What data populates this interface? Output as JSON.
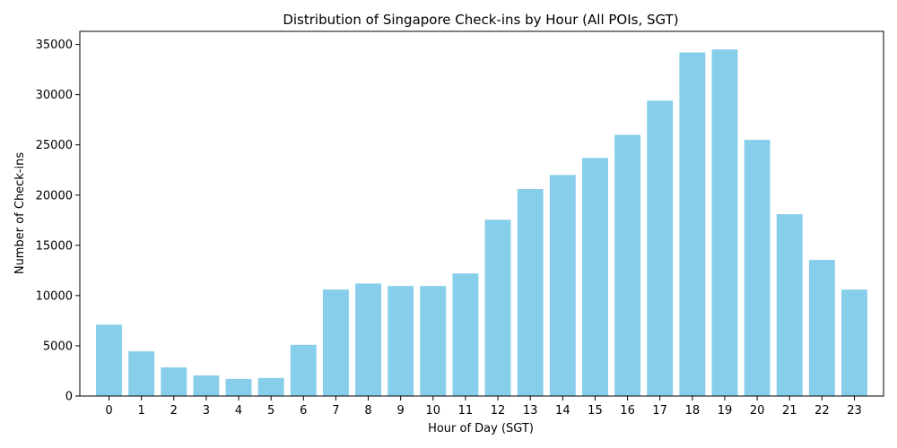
{
  "chart_data": {
    "type": "bar",
    "title": "Distribution of Singapore Check-ins by Hour (All POIs, SGT)",
    "xlabel": "Hour of Day (SGT)",
    "ylabel": "Number of Check-ins",
    "categories": [
      "0",
      "1",
      "2",
      "3",
      "4",
      "5",
      "6",
      "7",
      "8",
      "9",
      "10",
      "11",
      "12",
      "13",
      "14",
      "15",
      "16",
      "17",
      "18",
      "19",
      "20",
      "21",
      "22",
      "23"
    ],
    "values": [
      7100,
      4450,
      2850,
      2050,
      1700,
      1800,
      5100,
      10600,
      11200,
      10950,
      10950,
      12200,
      17550,
      20600,
      22000,
      23700,
      26000,
      29400,
      34200,
      34500,
      25500,
      18100,
      13550,
      10600
    ],
    "ylim": [
      0,
      36300
    ],
    "yticks": [
      0,
      5000,
      10000,
      15000,
      20000,
      25000,
      30000,
      35000
    ],
    "bar_color": "#87ceeb",
    "grid": false,
    "legend": "none"
  }
}
